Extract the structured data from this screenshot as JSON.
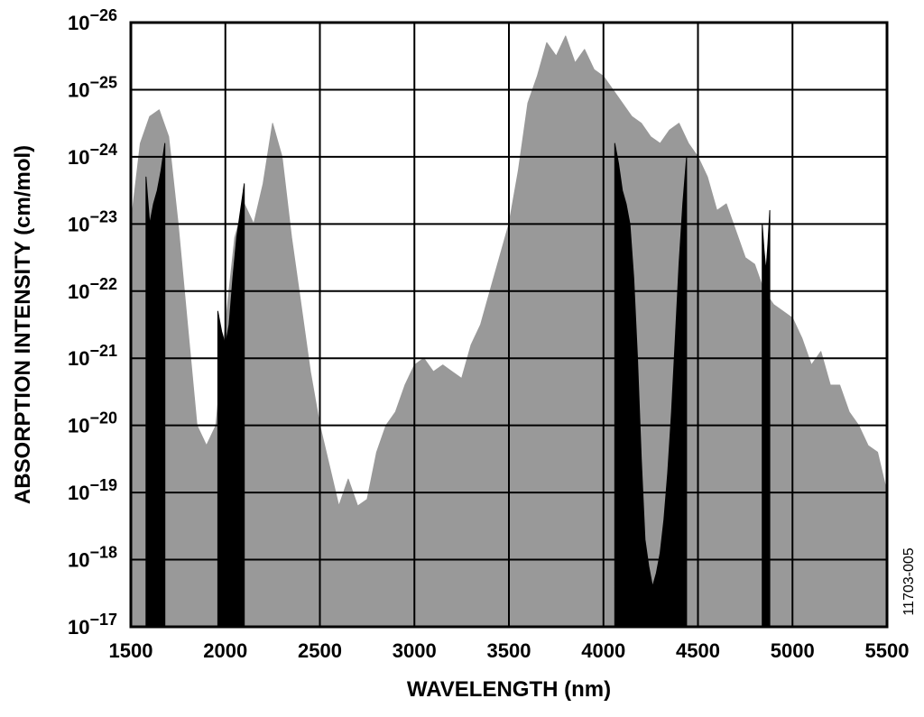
{
  "chart_data": {
    "type": "area",
    "title": "",
    "xlabel": "WAVELENGTH (nm)",
    "ylabel": "ABSORPTION INTENSITY (cm/mol)",
    "figure_id": "11703-005",
    "x_scale": "linear",
    "y_scale": "log",
    "xlim": [
      1500,
      5500
    ],
    "ylim_exponent": [
      -26,
      -17
    ],
    "x_ticks": [
      1500,
      2000,
      2500,
      3000,
      3500,
      4000,
      4500,
      5000,
      5500
    ],
    "x_tick_labels": [
      "1500",
      "2000",
      "2500",
      "3000",
      "3500",
      "4000",
      "4500",
      "5000",
      "5500"
    ],
    "y_tick_exponents": [
      -17,
      -18,
      -19,
      -20,
      -21,
      -22,
      -23,
      -24,
      -25,
      -26
    ],
    "y_tick_base": "10",
    "y_tick_sup": [
      "−17",
      "−18",
      "−19",
      "−20",
      "−21",
      "−22",
      "−23",
      "−24",
      "−25",
      "−26"
    ],
    "grid": true,
    "legend": "none",
    "series": [
      {
        "color": "#999999",
        "x": [
          1500,
          1550,
          1600,
          1650,
          1700,
          1750,
          1800,
          1850,
          1900,
          1950,
          2000,
          2050,
          2100,
          2150,
          2200,
          2250,
          2300,
          2350,
          2400,
          2450,
          2500,
          2550,
          2600,
          2650,
          2700,
          2750,
          2800,
          2850,
          2900,
          2950,
          3000,
          3050,
          3100,
          3150,
          3200,
          3250,
          3300,
          3350,
          3400,
          3450,
          3500,
          3550,
          3600,
          3650,
          3700,
          3750,
          3800,
          3850,
          3900,
          3950,
          4000,
          4050,
          4100,
          4150,
          4200,
          4250,
          4300,
          4350,
          4400,
          4450,
          4500,
          4550,
          4600,
          4650,
          4700,
          4750,
          4800,
          4850,
          4900,
          4950,
          5000,
          5050,
          5100,
          5150,
          5200,
          5250,
          5300,
          5350,
          5400,
          5450,
          5500
        ],
        "y_exponent": [
          -23.0,
          -24.2,
          -24.6,
          -24.7,
          -24.3,
          -23.0,
          -21.5,
          -20.0,
          -19.7,
          -20.0,
          -21.5,
          -22.8,
          -23.3,
          -23.0,
          -23.6,
          -24.5,
          -24.0,
          -22.8,
          -21.8,
          -20.8,
          -20.0,
          -19.4,
          -18.8,
          -19.2,
          -18.8,
          -18.9,
          -19.6,
          -20.0,
          -20.2,
          -20.6,
          -20.9,
          -21.0,
          -20.8,
          -20.9,
          -20.8,
          -20.7,
          -21.2,
          -21.5,
          -22.0,
          -22.5,
          -23.0,
          -23.8,
          -24.8,
          -25.2,
          -25.7,
          -25.5,
          -25.8,
          -25.4,
          -25.6,
          -25.3,
          -25.2,
          -25.0,
          -24.8,
          -24.6,
          -24.5,
          -24.3,
          -24.2,
          -24.4,
          -24.5,
          -24.2,
          -24.0,
          -23.7,
          -23.2,
          -23.3,
          -22.9,
          -22.5,
          -22.4,
          -22.0,
          -21.8,
          -21.7,
          -21.6,
          -21.3,
          -20.9,
          -21.1,
          -20.6,
          -20.6,
          -20.2,
          -20.0,
          -19.7,
          -19.6,
          -19.0
        ]
      },
      {
        "color": "#000000",
        "x": [
          1580,
          1600,
          1620,
          1640,
          1660,
          1680
        ],
        "y_exponent": [
          -23.7,
          -23.0,
          -23.3,
          -23.5,
          -23.8,
          -24.2
        ]
      },
      {
        "color": "#000000",
        "x": [
          1960,
          1980,
          2000,
          2020,
          2040,
          2060,
          2080,
          2100
        ],
        "y_exponent": [
          -21.7,
          -21.4,
          -21.2,
          -21.5,
          -22.2,
          -22.8,
          -23.2,
          -23.6
        ]
      },
      {
        "color": "#000000",
        "x": [
          4060,
          4080,
          4100,
          4120,
          4140,
          4160,
          4180,
          4200,
          4220,
          4240,
          4260,
          4280,
          4300,
          4320,
          4340,
          4360,
          4380,
          4400,
          4420,
          4440
        ],
        "y_exponent": [
          -24.2,
          -23.9,
          -23.5,
          -23.3,
          -23.0,
          -22.2,
          -21.0,
          -19.5,
          -18.3,
          -17.9,
          -17.6,
          -17.8,
          -18.1,
          -18.6,
          -19.3,
          -20.2,
          -21.3,
          -22.4,
          -23.3,
          -24.0
        ]
      },
      {
        "color": "#000000",
        "x": [
          4840,
          4850,
          4860,
          4870,
          4880
        ],
        "y_exponent": [
          -23.0,
          -22.6,
          -22.3,
          -22.7,
          -23.2
        ]
      }
    ]
  }
}
